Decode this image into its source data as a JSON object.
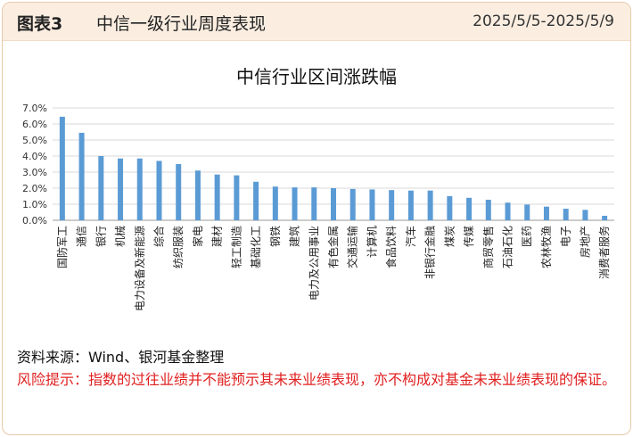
{
  "header": {
    "fig_label": "图表3",
    "fig_title": "中信一级行业周度表现",
    "date_range": "2025/5/5-2025/5/9"
  },
  "footer": {
    "source": "资料来源：Wind、银河基金整理",
    "risk": "风险提示：指数的过往业绩并不能预示其未来业绩表现，亦不构成对基金未来业绩表现的保证。"
  },
  "colors": {
    "bar": "#5b9bd5",
    "accent_border": "#e8c9a8",
    "header_bg": "#fbeee1",
    "risk_text": "#e02020"
  },
  "chart_data": {
    "type": "bar",
    "title": "中信行业区间涨跌幅",
    "ylim": [
      0,
      7
    ],
    "yticks": [
      "0.0%",
      "1.0%",
      "2.0%",
      "3.0%",
      "4.0%",
      "5.0%",
      "6.0%",
      "7.0%"
    ],
    "grid": true,
    "categories": [
      "国防军工",
      "通信",
      "银行",
      "机械",
      "电力设备及新能源",
      "综合",
      "纺织服装",
      "家电",
      "建材",
      "轻工制造",
      "基础化工",
      "钢铁",
      "建筑",
      "电力及公用事业",
      "有色金属",
      "交通运输",
      "计算机",
      "食品饮料",
      "汽车",
      "非银行金融",
      "煤炭",
      "传媒",
      "商贸零售",
      "石油石化",
      "医药",
      "农林牧渔",
      "电子",
      "房地产",
      "消费者服务"
    ],
    "values": [
      6.45,
      5.45,
      4.0,
      3.85,
      3.85,
      3.7,
      3.5,
      3.1,
      2.85,
      2.8,
      2.4,
      2.1,
      2.05,
      2.05,
      2.0,
      1.95,
      1.92,
      1.88,
      1.85,
      1.85,
      1.5,
      1.4,
      1.28,
      1.1,
      0.98,
      0.85,
      0.72,
      0.65,
      0.28
    ]
  }
}
